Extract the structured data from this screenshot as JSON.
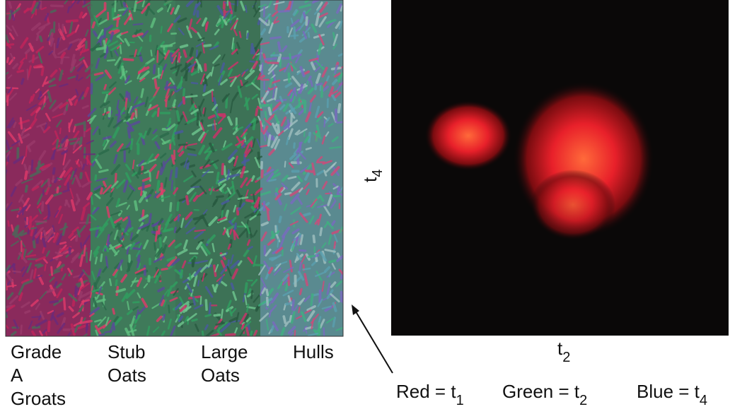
{
  "image_panel": {
    "columns": [
      {
        "lines": [
          "Grade",
          "A",
          "Groats"
        ]
      },
      {
        "lines": [
          "Stub",
          "Oats"
        ]
      },
      {
        "lines": [
          "Large",
          "Oats"
        ]
      },
      {
        "lines": [
          "Hulls"
        ]
      }
    ]
  },
  "density_plot": {
    "x_axis_label": {
      "text": "t",
      "subscript": "2"
    },
    "y_axis_label": {
      "text": "t",
      "subscript": "4"
    }
  },
  "legend": [
    {
      "text": "Red = t",
      "subscript": "1"
    },
    {
      "text": "Green = t",
      "subscript": "2"
    },
    {
      "text": "Blue = t",
      "subscript": "4"
    }
  ]
}
